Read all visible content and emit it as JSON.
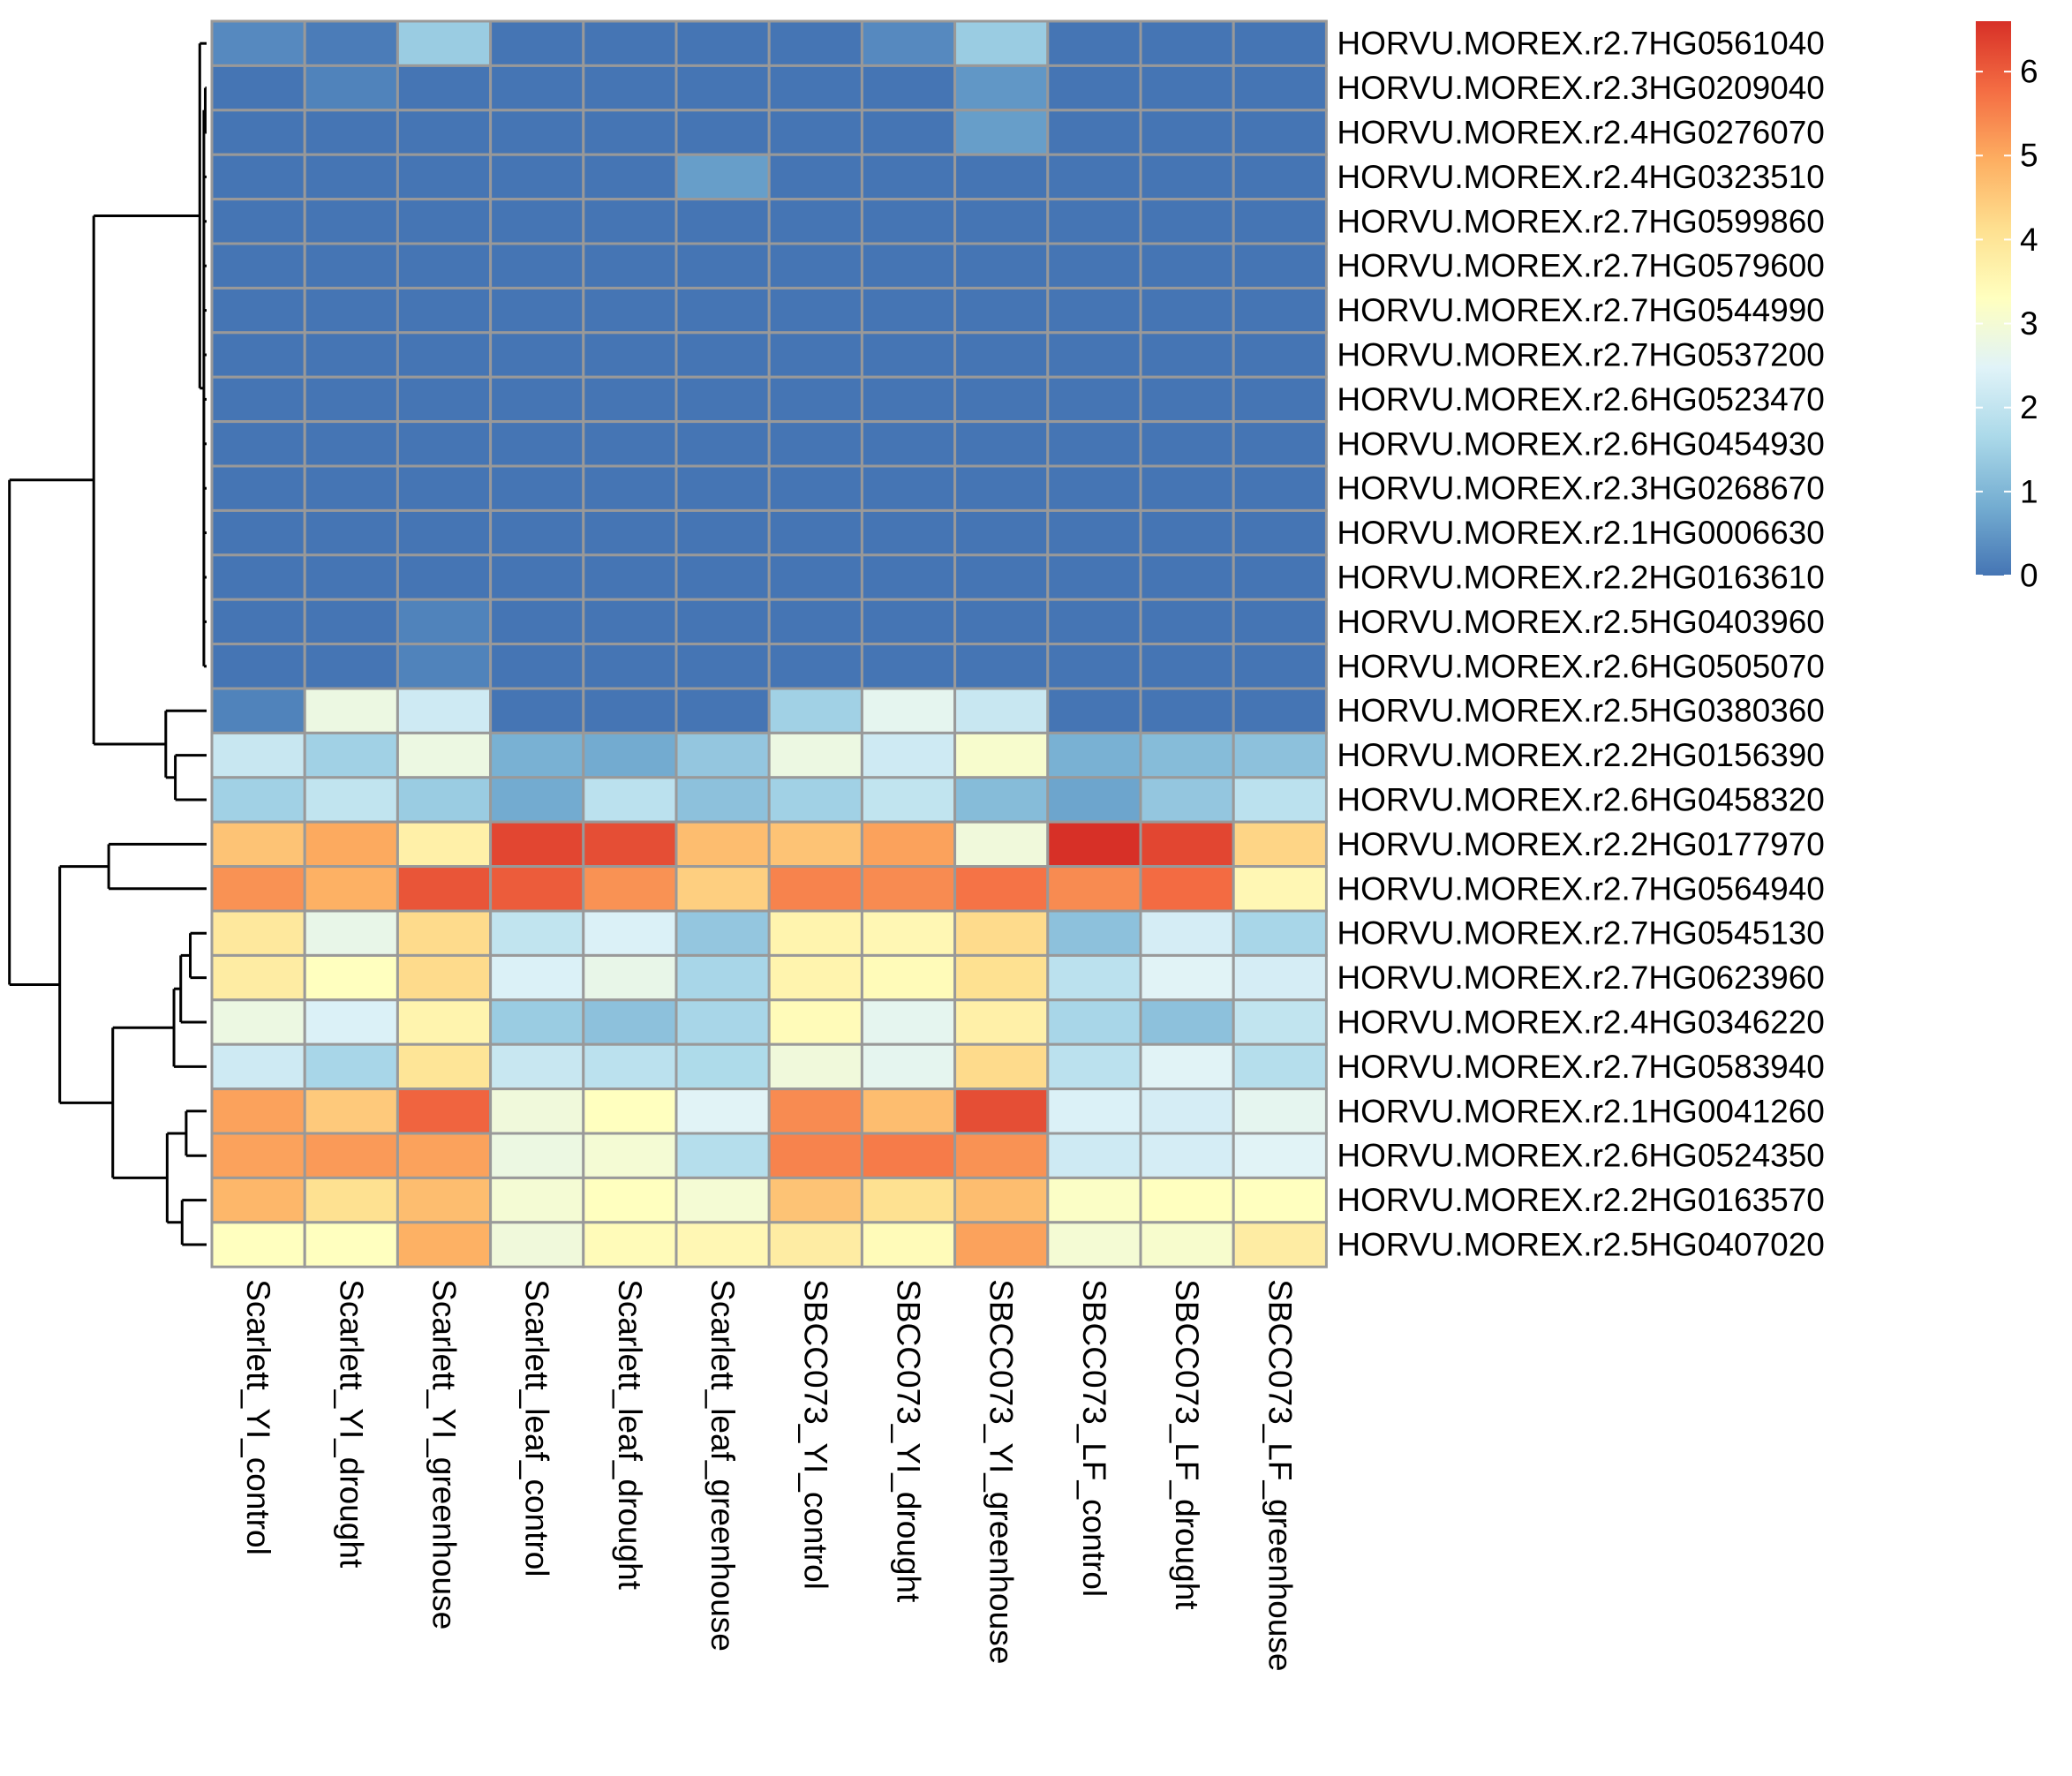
{
  "chart_data": {
    "type": "heatmap",
    "rows": [
      "HORVU.MOREX.r2.7HG0561040",
      "HORVU.MOREX.r2.3HG0209040",
      "HORVU.MOREX.r2.4HG0276070",
      "HORVU.MOREX.r2.4HG0323510",
      "HORVU.MOREX.r2.7HG0599860",
      "HORVU.MOREX.r2.7HG0579600",
      "HORVU.MOREX.r2.7HG0544990",
      "HORVU.MOREX.r2.7HG0537200",
      "HORVU.MOREX.r2.6HG0523470",
      "HORVU.MOREX.r2.6HG0454930",
      "HORVU.MOREX.r2.3HG0268670",
      "HORVU.MOREX.r2.1HG0006630",
      "HORVU.MOREX.r2.2HG0163610",
      "HORVU.MOREX.r2.5HG0403960",
      "HORVU.MOREX.r2.6HG0505070",
      "HORVU.MOREX.r2.5HG0380360",
      "HORVU.MOREX.r2.2HG0156390",
      "HORVU.MOREX.r2.6HG0458320",
      "HORVU.MOREX.r2.2HG0177970",
      "HORVU.MOREX.r2.7HG0564940",
      "HORVU.MOREX.r2.7HG0545130",
      "HORVU.MOREX.r2.7HG0623960",
      "HORVU.MOREX.r2.4HG0346220",
      "HORVU.MOREX.r2.7HG0583940",
      "HORVU.MOREX.r2.1HG0041260",
      "HORVU.MOREX.r2.6HG0524350",
      "HORVU.MOREX.r2.2HG0163570",
      "HORVU.MOREX.r2.5HG0407020"
    ],
    "columns": [
      "Scarlett_YI_control",
      "Scarlett_YI_drought",
      "Scarlett_YI_greenhouse",
      "Scarlett_leaf_control",
      "Scarlett_leaf_drought",
      "Scarlett_leaf_greenhouse",
      "SBCC073_YI_control",
      "SBCC073_YI_drought",
      "SBCC073_YI_greenhouse",
      "SBCC073_LF_control",
      "SBCC073_LF_drought",
      "SBCC073_LF_greenhouse"
    ],
    "values": [
      [
        0.3,
        0.1,
        1.4,
        0,
        0,
        0,
        0,
        0.3,
        1.4,
        0,
        0,
        0
      ],
      [
        0,
        0.2,
        0,
        0,
        0,
        0,
        0,
        0,
        0.5,
        0,
        0,
        0
      ],
      [
        0,
        0,
        0,
        0,
        0,
        0,
        0,
        0,
        0.6,
        0,
        0,
        0
      ],
      [
        0,
        0,
        0,
        0,
        0,
        0.6,
        0,
        0,
        0,
        0,
        0,
        0
      ],
      [
        0,
        0,
        0,
        0,
        0,
        0,
        0,
        0,
        0,
        0,
        0,
        0
      ],
      [
        0,
        0,
        0,
        0,
        0,
        0,
        0,
        0,
        0,
        0,
        0,
        0
      ],
      [
        0,
        0,
        0,
        0,
        0,
        0,
        0,
        0,
        0,
        0,
        0,
        0
      ],
      [
        0,
        0,
        0,
        0,
        0,
        0,
        0,
        0,
        0,
        0,
        0,
        0
      ],
      [
        0,
        0,
        0,
        0,
        0,
        0,
        0,
        0,
        0,
        0,
        0,
        0
      ],
      [
        0,
        0,
        0,
        0,
        0,
        0,
        0,
        0,
        0,
        0,
        0,
        0
      ],
      [
        0,
        0,
        0,
        0,
        0,
        0,
        0,
        0,
        0,
        0,
        0,
        0
      ],
      [
        0,
        0,
        0,
        0,
        0,
        0,
        0,
        0,
        0,
        0,
        0,
        0
      ],
      [
        0,
        0,
        0,
        0,
        0,
        0,
        0,
        0,
        0,
        0,
        0,
        0
      ],
      [
        0,
        0,
        0.2,
        0,
        0,
        0,
        0,
        0,
        0,
        0,
        0,
        0
      ],
      [
        0,
        0,
        0.2,
        0,
        0,
        0,
        0,
        0,
        0,
        0,
        0,
        0
      ],
      [
        0.2,
        2.8,
        2.2,
        0,
        0,
        0,
        1.5,
        2.6,
        2.1,
        0,
        0,
        0
      ],
      [
        2.1,
        1.5,
        2.8,
        0.9,
        0.8,
        1.3,
        2.8,
        2.2,
        3.1,
        0.9,
        1.1,
        1.2
      ],
      [
        1.5,
        2.0,
        1.4,
        0.8,
        1.9,
        1.2,
        1.5,
        2.0,
        1.1,
        0.7,
        1.3,
        1.9
      ],
      [
        4.6,
        5.0,
        3.7,
        6.3,
        6.2,
        4.7,
        4.6,
        5.1,
        2.9,
        6.6,
        6.3,
        4.3
      ],
      [
        5.3,
        4.9,
        6.1,
        6.0,
        5.3,
        4.4,
        5.5,
        5.4,
        5.7,
        5.4,
        5.8,
        3.5
      ],
      [
        3.9,
        2.7,
        4.2,
        2.0,
        2.4,
        1.3,
        3.6,
        3.5,
        4.2,
        1.2,
        2.3,
        1.6
      ],
      [
        3.8,
        3.3,
        4.2,
        2.4,
        2.7,
        1.6,
        3.6,
        3.4,
        4.1,
        1.9,
        2.5,
        2.3
      ],
      [
        2.8,
        2.4,
        3.6,
        1.4,
        1.2,
        1.6,
        3.4,
        2.6,
        3.7,
        1.6,
        1.2,
        2.0
      ],
      [
        2.2,
        1.6,
        4.0,
        2.1,
        1.9,
        1.7,
        2.9,
        2.6,
        4.2,
        1.9,
        2.5,
        1.8
      ],
      [
        5.1,
        4.5,
        5.9,
        2.9,
        3.3,
        2.5,
        5.4,
        4.7,
        6.2,
        2.4,
        2.3,
        2.6
      ],
      [
        5.1,
        5.2,
        5.1,
        2.8,
        3.0,
        1.8,
        5.5,
        5.6,
        5.3,
        2.2,
        2.3,
        2.5
      ],
      [
        4.8,
        4.1,
        4.7,
        3.0,
        3.3,
        3.0,
        4.6,
        4.1,
        4.7,
        3.2,
        3.3,
        3.3
      ],
      [
        3.3,
        3.3,
        4.9,
        2.9,
        3.4,
        3.5,
        3.8,
        3.4,
        5.1,
        3.0,
        3.1,
        3.8
      ]
    ],
    "colorbar": {
      "ticks": [
        0,
        1,
        2,
        3,
        4,
        5,
        6
      ],
      "tick_labels": [
        "0",
        "1",
        "2",
        "3",
        "4",
        "5",
        "6"
      ],
      "range": [
        0,
        6.6
      ],
      "colors": [
        "#4575b4",
        "#74add1",
        "#abd9e9",
        "#e0f3f8",
        "#ffffbf",
        "#fee090",
        "#fdae61",
        "#f46d43",
        "#d73027"
      ]
    },
    "cell_border_color": "#999999",
    "row_dendrogram": true,
    "legend_position": "top-right"
  }
}
